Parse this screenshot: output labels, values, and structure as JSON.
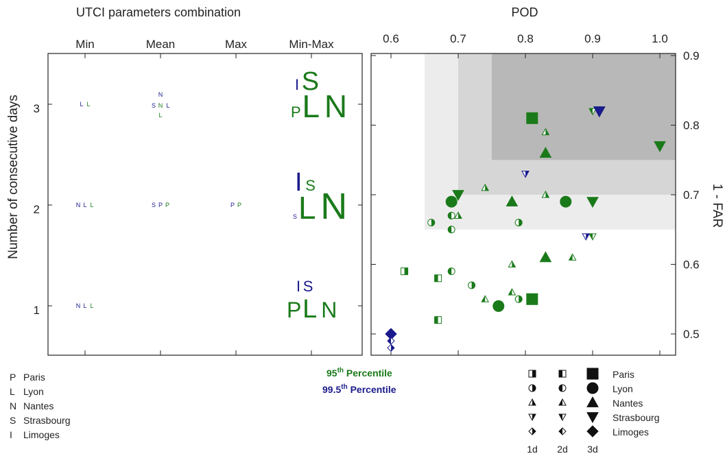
{
  "colors": {
    "green": "#1a7a1a",
    "blue": "#1a1a8c",
    "shade1": "#ececec",
    "shade2": "#d6d6d6",
    "shade3": "#b8b8b8"
  },
  "left_panel": {
    "title": "UTCI parameters combination",
    "columns": [
      "Min",
      "Mean",
      "Max",
      "Min-Max"
    ],
    "ylabel": "Number of consecutive days",
    "yticks": [
      "1",
      "2",
      "3"
    ]
  },
  "right_panel": {
    "title": "POD",
    "xticks": [
      "0.6",
      "0.7",
      "0.8",
      "0.9",
      "1.0"
    ],
    "yticks": [
      "0.5",
      "0.6",
      "0.7",
      "0.8",
      "0.9"
    ],
    "ylabel": "1 - FAR"
  },
  "city_legend": [
    {
      "letter": "P",
      "name": "Paris"
    },
    {
      "letter": "L",
      "name": "Lyon"
    },
    {
      "letter": "N",
      "name": "Nantes"
    },
    {
      "letter": "S",
      "name": "Strasbourg"
    },
    {
      "letter": "I",
      "name": "Limoges"
    }
  ],
  "percentiles": {
    "p95": "95",
    "p95_sup": "th",
    "p95_text": " Percentile",
    "p995": "99.5",
    "p995_sup": "th",
    "p995_text": " Percentile"
  },
  "marker_legend": {
    "cities": [
      "Paris",
      "Lyon",
      "Nantes",
      "Strasbourg",
      "Limoges"
    ],
    "durations": [
      "1d",
      "2d",
      "3d"
    ]
  },
  "chart_data": [
    {
      "type": "table",
      "title": "UTCI parameters combination",
      "columns": [
        "Min",
        "Mean",
        "Max",
        "Min-Max"
      ],
      "rows": [
        "1",
        "2",
        "3"
      ],
      "ylabel": "Number of consecutive days",
      "letters": [
        {
          "col": "Min",
          "row": 1,
          "items": [
            {
              "t": "N",
              "c": "blue",
              "s": 1
            },
            {
              "t": "L",
              "c": "blue",
              "s": 1
            },
            {
              "t": "L",
              "c": "green",
              "s": 1
            }
          ]
        },
        {
          "col": "Min",
          "row": 2,
          "items": [
            {
              "t": "N",
              "c": "blue",
              "s": 1
            },
            {
              "t": "L",
              "c": "blue",
              "s": 1
            },
            {
              "t": "L",
              "c": "green",
              "s": 1
            }
          ]
        },
        {
          "col": "Min",
          "row": 3,
          "items": [
            {
              "t": "L",
              "c": "blue",
              "s": 1
            },
            {
              "t": "L",
              "c": "green",
              "s": 1
            }
          ]
        },
        {
          "col": "Mean",
          "row": 2,
          "items": [
            {
              "t": "S",
              "c": "blue",
              "s": 1
            },
            {
              "t": "P",
              "c": "blue",
              "s": 1
            },
            {
              "t": "P",
              "c": "green",
              "s": 1
            }
          ]
        },
        {
          "col": "Mean",
          "row": 3,
          "items": [
            {
              "t": "N",
              "c": "blue",
              "s": 1
            },
            {
              "t": "S",
              "c": "blue",
              "s": 1
            },
            {
              "t": "N",
              "c": "green",
              "s": 1
            },
            {
              "t": "L",
              "c": "blue",
              "s": 1
            },
            {
              "t": "L",
              "c": "green",
              "s": 1
            }
          ]
        },
        {
          "col": "Max",
          "row": 2,
          "items": [
            {
              "t": "P",
              "c": "blue",
              "s": 1
            },
            {
              "t": "P",
              "c": "green",
              "s": 1
            }
          ]
        },
        {
          "col": "Min-Max",
          "row": 1,
          "items": [
            {
              "t": "I",
              "c": "blue",
              "s": 3
            },
            {
              "t": "S",
              "c": "blue",
              "s": 3
            },
            {
              "t": "P",
              "c": "green",
              "s": 4
            },
            {
              "t": "L",
              "c": "green",
              "s": 5
            },
            {
              "t": "N",
              "c": "green",
              "s": 4
            }
          ]
        },
        {
          "col": "Min-Max",
          "row": 2,
          "items": [
            {
              "t": "I",
              "c": "blue",
              "s": 5
            },
            {
              "t": "S",
              "c": "green",
              "s": 3
            },
            {
              "t": "S",
              "c": "blue",
              "s": 1
            },
            {
              "t": "L",
              "c": "green",
              "s": 6
            },
            {
              "t": "N",
              "c": "green",
              "s": 7
            }
          ]
        },
        {
          "col": "Min-Max",
          "row": 3,
          "items": [
            {
              "t": "I",
              "c": "blue",
              "s": 3
            },
            {
              "t": "S",
              "c": "green",
              "s": 5
            },
            {
              "t": "P",
              "c": "green",
              "s": 3
            },
            {
              "t": "L",
              "c": "green",
              "s": 6
            },
            {
              "t": "N",
              "c": "green",
              "s": 6
            }
          ]
        }
      ]
    },
    {
      "type": "scatter",
      "title": "POD",
      "xlabel": "POD",
      "ylabel": "1 - FAR",
      "xlim": [
        0.58,
        1.02
      ],
      "ylim": [
        0.47,
        0.9
      ],
      "shaded_regions": [
        {
          "x0": 0.65,
          "y0": 0.65,
          "level": 1
        },
        {
          "x0": 0.7,
          "y0": 0.7,
          "level": 2
        },
        {
          "x0": 0.75,
          "y0": 0.75,
          "level": 3
        }
      ],
      "points": [
        {
          "x": 0.62,
          "y": 0.59,
          "city": "Paris",
          "d": "1d",
          "c": "green"
        },
        {
          "x": 0.67,
          "y": 0.58,
          "city": "Paris",
          "d": "2d",
          "c": "green"
        },
        {
          "x": 0.67,
          "y": 0.52,
          "city": "Paris",
          "d": "2d",
          "c": "green"
        },
        {
          "x": 0.81,
          "y": 0.55,
          "city": "Paris",
          "d": "3d",
          "c": "green"
        },
        {
          "x": 0.81,
          "y": 0.81,
          "city": "Paris",
          "d": "3d",
          "c": "green"
        },
        {
          "x": 0.66,
          "y": 0.66,
          "city": "Lyon",
          "d": "1d",
          "c": "green"
        },
        {
          "x": 0.72,
          "y": 0.57,
          "city": "Lyon",
          "d": "1d",
          "c": "green"
        },
        {
          "x": 0.79,
          "y": 0.55,
          "city": "Lyon",
          "d": "1d",
          "c": "green"
        },
        {
          "x": 0.79,
          "y": 0.66,
          "city": "Lyon",
          "d": "1d",
          "c": "green"
        },
        {
          "x": 0.69,
          "y": 0.65,
          "city": "Lyon",
          "d": "2d",
          "c": "green"
        },
        {
          "x": 0.69,
          "y": 0.67,
          "city": "Lyon",
          "d": "2d",
          "c": "green"
        },
        {
          "x": 0.69,
          "y": 0.59,
          "city": "Lyon",
          "d": "2d",
          "c": "green"
        },
        {
          "x": 0.69,
          "y": 0.69,
          "city": "Lyon",
          "d": "3d",
          "c": "green"
        },
        {
          "x": 0.76,
          "y": 0.54,
          "city": "Lyon",
          "d": "3d",
          "c": "green"
        },
        {
          "x": 0.86,
          "y": 0.69,
          "city": "Lyon",
          "d": "3d",
          "c": "green"
        },
        {
          "x": 0.7,
          "y": 0.67,
          "city": "Nantes",
          "d": "1d",
          "c": "green"
        },
        {
          "x": 0.74,
          "y": 0.71,
          "city": "Nantes",
          "d": "1d",
          "c": "green"
        },
        {
          "x": 0.78,
          "y": 0.6,
          "city": "Nantes",
          "d": "1d",
          "c": "green"
        },
        {
          "x": 0.83,
          "y": 0.7,
          "city": "Nantes",
          "d": "1d",
          "c": "green"
        },
        {
          "x": 0.83,
          "y": 0.79,
          "city": "Nantes",
          "d": "1d",
          "c": "green"
        },
        {
          "x": 0.74,
          "y": 0.55,
          "city": "Nantes",
          "d": "2d",
          "c": "green"
        },
        {
          "x": 0.78,
          "y": 0.56,
          "city": "Nantes",
          "d": "2d",
          "c": "green"
        },
        {
          "x": 0.87,
          "y": 0.61,
          "city": "Nantes",
          "d": "2d",
          "c": "green"
        },
        {
          "x": 0.78,
          "y": 0.69,
          "city": "Nantes",
          "d": "3d",
          "c": "green"
        },
        {
          "x": 0.83,
          "y": 0.76,
          "city": "Nantes",
          "d": "3d",
          "c": "green"
        },
        {
          "x": 0.83,
          "y": 0.61,
          "city": "Nantes",
          "d": "3d",
          "c": "green"
        },
        {
          "x": 0.7,
          "y": 0.7,
          "city": "Strasbourg",
          "d": "3d",
          "c": "green"
        },
        {
          "x": 0.9,
          "y": 0.69,
          "city": "Strasbourg",
          "d": "3d",
          "c": "green"
        },
        {
          "x": 1.0,
          "y": 0.77,
          "city": "Strasbourg",
          "d": "3d",
          "c": "green"
        },
        {
          "x": 0.91,
          "y": 0.82,
          "city": "Strasbourg",
          "d": "3d",
          "c": "green"
        },
        {
          "x": 0.9,
          "y": 0.82,
          "city": "Strasbourg",
          "d": "2d",
          "c": "green"
        },
        {
          "x": 0.9,
          "y": 0.64,
          "city": "Strasbourg",
          "d": "2d",
          "c": "green"
        },
        {
          "x": 0.8,
          "y": 0.73,
          "city": "Strasbourg",
          "d": "1d",
          "c": "blue"
        },
        {
          "x": 0.91,
          "y": 0.82,
          "city": "Strasbourg",
          "d": "3d",
          "c": "blue"
        },
        {
          "x": 0.89,
          "y": 0.64,
          "city": "Strasbourg",
          "d": "1d",
          "c": "blue"
        },
        {
          "x": 0.6,
          "y": 0.5,
          "city": "Limoges",
          "d": "3d",
          "c": "blue"
        },
        {
          "x": 0.6,
          "y": 0.49,
          "city": "Limoges",
          "d": "2d",
          "c": "blue"
        },
        {
          "x": 0.6,
          "y": 0.48,
          "city": "Limoges",
          "d": "1d",
          "c": "blue"
        }
      ]
    }
  ]
}
